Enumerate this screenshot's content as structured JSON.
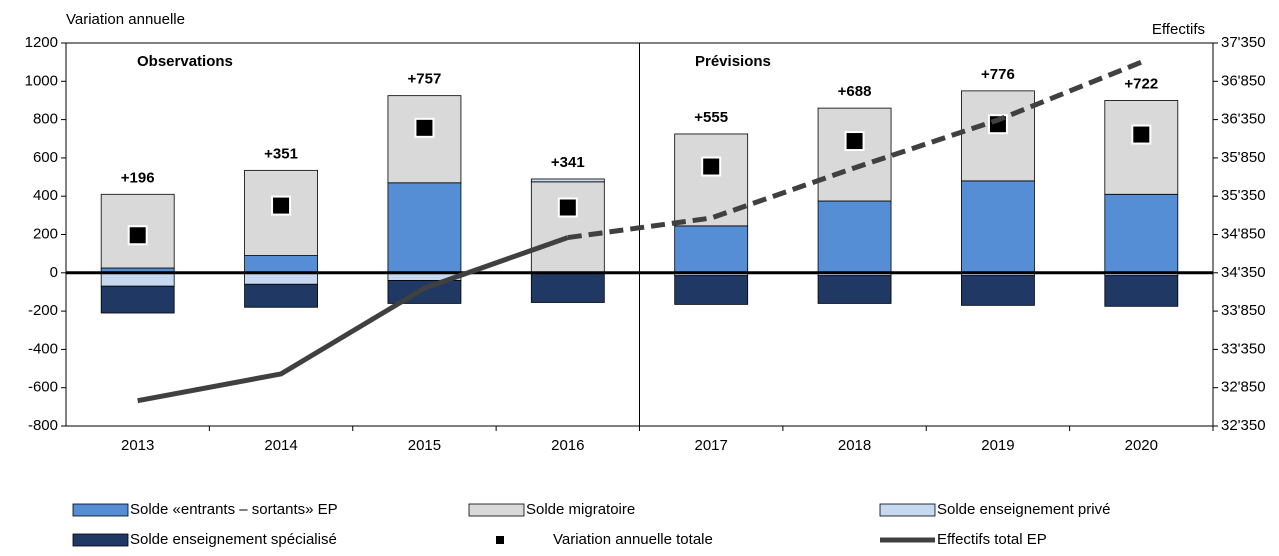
{
  "chart_data": {
    "type": "bar",
    "ylabel": "Variation annuelle",
    "y2label": "Effectifs",
    "annotations": [
      "Observations",
      "Prévisions"
    ],
    "categories": [
      "2013",
      "2014",
      "2015",
      "2016",
      "2017",
      "2018",
      "2019",
      "2020"
    ],
    "series": [
      {
        "name": "Solde «entrants – sortants» EP",
        "color": "#558ed5",
        "values": [
          25,
          90,
          470,
          0,
          245,
          375,
          480,
          410
        ]
      },
      {
        "name": "Solde migratoire",
        "color": "#d9d9d9",
        "values": [
          385,
          445,
          455,
          475,
          480,
          485,
          470,
          490
        ]
      },
      {
        "name": "Solde enseignement privé",
        "color": "#c6d9f1",
        "values": [
          -70,
          -60,
          -40,
          15,
          -15,
          -15,
          -15,
          -15
        ]
      },
      {
        "name": "Solde enseignement spécialisé",
        "color": "#1f3864",
        "values": [
          -140,
          -120,
          -120,
          -155,
          -150,
          -145,
          -155,
          -160
        ]
      }
    ],
    "totals": {
      "name": "Variation annuelle totale",
      "color": "#000000",
      "values": [
        196,
        351,
        757,
        341,
        555,
        688,
        776,
        722
      ],
      "value_labels": [
        "+196",
        "+351",
        "+757",
        "+341",
        "+555",
        "+688",
        "+776",
        "+722"
      ]
    },
    "line_series": {
      "name": "Effectifs total EP",
      "color": "#404040",
      "axis": "y2",
      "dashed_from_index": 3,
      "values": [
        32680,
        33030,
        34150,
        34810,
        35065,
        35720,
        36345,
        37100
      ]
    },
    "ylim": [
      -800,
      1200
    ],
    "yticks": [
      -800,
      -600,
      -400,
      -200,
      0,
      200,
      400,
      600,
      800,
      1000,
      1200
    ],
    "y2lim": [
      32350,
      37350
    ],
    "y2ticks": [
      {
        "value": 32350,
        "label": "32'350"
      },
      {
        "value": 32850,
        "label": "32'850"
      },
      {
        "value": 33350,
        "label": "33'350"
      },
      {
        "value": 33850,
        "label": "33'850"
      },
      {
        "value": 34350,
        "label": "34'350"
      },
      {
        "value": 34850,
        "label": "34'850"
      },
      {
        "value": 35350,
        "label": "35'350"
      },
      {
        "value": 35850,
        "label": "35'850"
      },
      {
        "value": 36350,
        "label": "36'350"
      },
      {
        "value": 36850,
        "label": "36'850"
      },
      {
        "value": 37350,
        "label": "37'350"
      }
    ],
    "grid": false
  }
}
